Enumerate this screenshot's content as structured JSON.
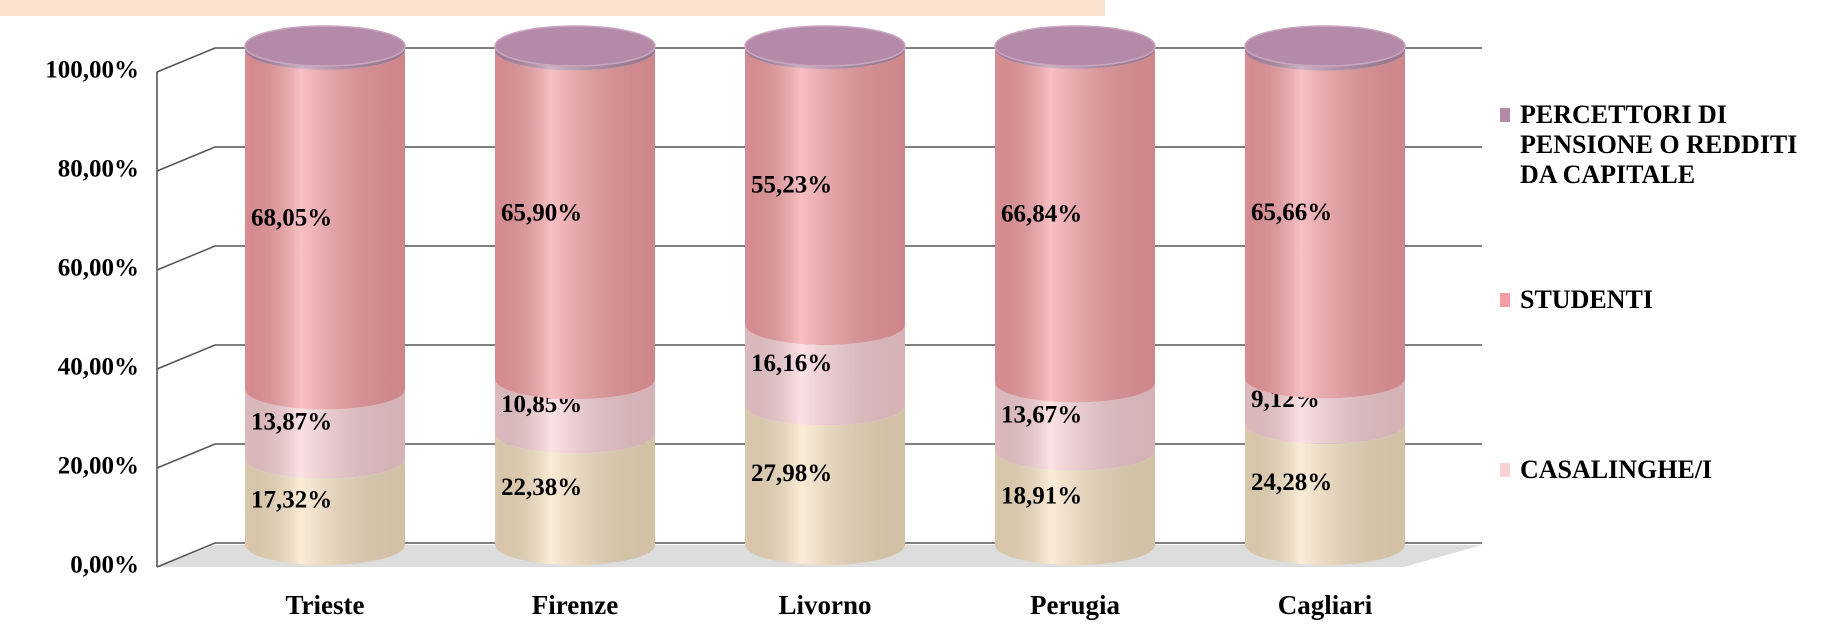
{
  "chart_data": {
    "type": "stacked-cylinder",
    "categories": [
      "Trieste",
      "Firenze",
      "Livorno",
      "Perugia",
      "Cagliari"
    ],
    "series": [
      {
        "color": "#f7e3c2",
        "values": [
          17.32,
          22.38,
          27.98,
          18.91,
          24.28
        ],
        "value_labels": [
          "17,32%",
          "22,38%",
          "27,98%",
          "18,91%",
          "24,28%"
        ]
      },
      {
        "name": "CASALINGHE/I",
        "color": "#fad2d6",
        "values": [
          13.87,
          10.85,
          16.16,
          13.67,
          9.12
        ],
        "value_labels": [
          "13,87%",
          "10,85%",
          "16,16%",
          "13,67%",
          "9,12%"
        ]
      },
      {
        "name": "STUDENTI",
        "color": "#f49ea3",
        "values": [
          68.05,
          65.9,
          55.23,
          66.84,
          65.66
        ],
        "value_labels": [
          "68,05%",
          "65,90%",
          "55,23%",
          "66,84%",
          "65,66%"
        ]
      },
      {
        "name": "PERCETTORI DI PENSIONE O REDDITI DA CAPITALE",
        "color": "#b48aa8",
        "values": [
          0.76,
          0.87,
          0.63,
          0.58,
          0.94
        ]
      }
    ],
    "ylim": [
      0,
      100
    ],
    "yticks": [
      {
        "value": 0,
        "label": "0,00%"
      },
      {
        "value": 20,
        "label": "20,00%"
      },
      {
        "value": 40,
        "label": "40,00%"
      },
      {
        "value": 60,
        "label": "60,00%"
      },
      {
        "value": 80,
        "label": "80,00%"
      },
      {
        "value": 100,
        "label": "100,00%"
      }
    ],
    "grid": true,
    "legend": "right"
  }
}
